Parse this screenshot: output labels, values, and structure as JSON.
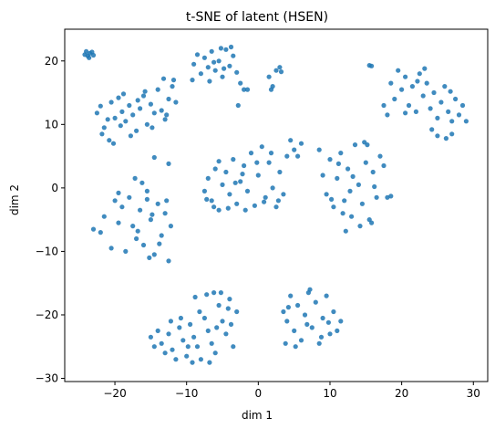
{
  "chart_data": {
    "type": "scatter",
    "title": "t-SNE of latent (HSEN)",
    "xlabel": "dim 1",
    "ylabel": "dim 2",
    "xlim": [
      -27,
      32
    ],
    "ylim": [
      -30.5,
      25
    ],
    "xticks": [
      -20,
      -10,
      0,
      10,
      20,
      30
    ],
    "yticks": [
      -30,
      -20,
      -10,
      0,
      10,
      20
    ],
    "xtick_labels": [
      "−20",
      "−10",
      "0",
      "10",
      "20",
      "30"
    ],
    "ytick_labels": [
      "−30",
      "−20",
      "−10",
      "0",
      "10",
      "20"
    ],
    "grid": false,
    "marker_color": "#1f77b4",
    "points": [
      [
        -24.0,
        21.5
      ],
      [
        -23.5,
        21.2
      ],
      [
        -23.8,
        20.8
      ],
      [
        -23.2,
        21.4
      ],
      [
        -23.0,
        20.9
      ],
      [
        -24.2,
        21.0
      ],
      [
        -23.6,
        20.5
      ],
      [
        -22.5,
        11.8
      ],
      [
        -22.0,
        12.9
      ],
      [
        -21.5,
        9.5
      ],
      [
        -21.0,
        10.8
      ],
      [
        -20.5,
        13.5
      ],
      [
        -20.0,
        11.0
      ],
      [
        -19.5,
        14.2
      ],
      [
        -19.0,
        12.0
      ],
      [
        -18.5,
        10.5
      ],
      [
        -18.0,
        13.0
      ],
      [
        -17.5,
        11.5
      ],
      [
        -17.0,
        9.0
      ],
      [
        -16.5,
        12.5
      ],
      [
        -16.0,
        14.5
      ],
      [
        -15.5,
        10.0
      ],
      [
        -15.0,
        13.2
      ],
      [
        -14.5,
        11.8
      ],
      [
        -14.0,
        15.5
      ],
      [
        -13.5,
        12.2
      ],
      [
        -13.0,
        10.8
      ],
      [
        -12.5,
        14.0
      ],
      [
        -12.0,
        16.0
      ],
      [
        -11.5,
        13.5
      ],
      [
        -20.8,
        7.5
      ],
      [
        -21.8,
        8.5
      ],
      [
        -19.2,
        9.8
      ],
      [
        -17.8,
        8.2
      ],
      [
        -15.8,
        15.2
      ],
      [
        -14.8,
        9.5
      ],
      [
        -13.2,
        17.2
      ],
      [
        -11.8,
        17.0
      ],
      [
        -12.8,
        11.5
      ],
      [
        -16.8,
        13.8
      ],
      [
        -18.8,
        14.8
      ],
      [
        -20.2,
        7.0
      ],
      [
        -9.0,
        19.5
      ],
      [
        -8.5,
        21.0
      ],
      [
        -8.0,
        18.0
      ],
      [
        -7.5,
        20.5
      ],
      [
        -7.0,
        19.0
      ],
      [
        -6.5,
        21.5
      ],
      [
        -6.0,
        18.5
      ],
      [
        -5.5,
        20.0
      ],
      [
        -5.0,
        17.5
      ],
      [
        -4.5,
        21.8
      ],
      [
        -4.0,
        19.2
      ],
      [
        -3.5,
        20.8
      ],
      [
        -3.0,
        18.2
      ],
      [
        -2.5,
        16.5
      ],
      [
        -2.0,
        15.5
      ],
      [
        -9.2,
        17.0
      ],
      [
        -6.8,
        16.8
      ],
      [
        -5.2,
        22.0
      ],
      [
        -3.8,
        22.2
      ],
      [
        -2.8,
        13.0
      ],
      [
        -1.5,
        15.5
      ],
      [
        -6.2,
        19.8
      ],
      [
        -4.8,
        18.8
      ],
      [
        1.5,
        17.5
      ],
      [
        2.0,
        16.0
      ],
      [
        2.5,
        18.5
      ],
      [
        3.0,
        19.0
      ],
      [
        3.2,
        18.3
      ],
      [
        1.8,
        15.5
      ],
      [
        -14.5,
        4.8
      ],
      [
        -12.5,
        3.8
      ],
      [
        -23.0,
        -6.5
      ],
      [
        -22.0,
        -7.0
      ],
      [
        -21.5,
        -4.5
      ],
      [
        -20.5,
        -9.5
      ],
      [
        -20.0,
        -2.0
      ],
      [
        -19.5,
        -5.5
      ],
      [
        -19.0,
        -3.0
      ],
      [
        -18.5,
        -10.0
      ],
      [
        -18.0,
        -1.5
      ],
      [
        -17.5,
        -6.0
      ],
      [
        -17.0,
        -8.0
      ],
      [
        -16.5,
        -3.5
      ],
      [
        -16.0,
        -9.0
      ],
      [
        -15.5,
        -0.5
      ],
      [
        -15.0,
        -5.0
      ],
      [
        -14.5,
        -10.5
      ],
      [
        -14.0,
        -2.5
      ],
      [
        -13.5,
        -7.5
      ],
      [
        -13.0,
        -4.0
      ],
      [
        -12.5,
        -11.5
      ],
      [
        -12.2,
        -6.0
      ],
      [
        -15.5,
        -1.8
      ],
      [
        -17.2,
        1.5
      ],
      [
        -16.2,
        0.8
      ],
      [
        -14.8,
        -4.2
      ],
      [
        -13.8,
        -8.8
      ],
      [
        -19.5,
        -0.8
      ],
      [
        -12.8,
        -2.0
      ],
      [
        -15.2,
        -11.0
      ],
      [
        -16.8,
        -6.8
      ],
      [
        -7.5,
        -0.5
      ],
      [
        -7.0,
        1.5
      ],
      [
        -6.5,
        -2.0
      ],
      [
        -6.0,
        3.0
      ],
      [
        -5.5,
        -3.5
      ],
      [
        -5.0,
        0.5
      ],
      [
        -4.5,
        2.5
      ],
      [
        -4.0,
        -1.0
      ],
      [
        -3.5,
        4.5
      ],
      [
        -3.0,
        -2.5
      ],
      [
        -2.5,
        1.0
      ],
      [
        -2.0,
        3.5
      ],
      [
        -1.5,
        -0.5
      ],
      [
        -1.0,
        5.5
      ],
      [
        -0.5,
        -2.8
      ],
      [
        0.0,
        2.0
      ],
      [
        0.5,
        6.5
      ],
      [
        1.0,
        -1.5
      ],
      [
        1.5,
        4.0
      ],
      [
        2.0,
        0.0
      ],
      [
        2.5,
        -3.0
      ],
      [
        3.0,
        2.5
      ],
      [
        3.5,
        -1.0
      ],
      [
        4.0,
        5.0
      ],
      [
        4.5,
        7.5
      ],
      [
        5.0,
        6.0
      ],
      [
        6.0,
        7.0
      ],
      [
        5.5,
        5.0
      ],
      [
        -7.2,
        -1.8
      ],
      [
        -6.2,
        -3.0
      ],
      [
        -4.2,
        -3.2
      ],
      [
        -1.8,
        -3.5
      ],
      [
        0.8,
        -2.2
      ],
      [
        2.8,
        -2.0
      ],
      [
        -3.2,
        0.8
      ],
      [
        -0.2,
        4.0
      ],
      [
        1.8,
        5.5
      ],
      [
        -5.5,
        4.2
      ],
      [
        -2.2,
        2.2
      ],
      [
        8.5,
        6.0
      ],
      [
        9.0,
        2.0
      ],
      [
        9.5,
        -1.0
      ],
      [
        10.0,
        4.5
      ],
      [
        10.5,
        -3.0
      ],
      [
        11.0,
        1.5
      ],
      [
        11.5,
        5.5
      ],
      [
        12.0,
        -2.0
      ],
      [
        12.5,
        3.0
      ],
      [
        13.0,
        -4.5
      ],
      [
        13.5,
        6.8
      ],
      [
        14.0,
        0.5
      ],
      [
        14.5,
        -2.5
      ],
      [
        15.0,
        4.0
      ],
      [
        15.5,
        -5.0
      ],
      [
        16.0,
        2.5
      ],
      [
        16.5,
        -1.5
      ],
      [
        17.0,
        5.0
      ],
      [
        17.5,
        3.5
      ],
      [
        18.0,
        -1.5
      ],
      [
        18.5,
        -1.3
      ],
      [
        12.2,
        -6.8
      ],
      [
        14.2,
        -6.0
      ],
      [
        15.8,
        -5.5
      ],
      [
        11.8,
        -4.0
      ],
      [
        13.2,
        1.8
      ],
      [
        10.2,
        -1.8
      ],
      [
        12.8,
        -0.5
      ],
      [
        15.2,
        6.8
      ],
      [
        14.8,
        7.2
      ],
      [
        16.2,
        0.2
      ],
      [
        11.2,
        3.8
      ],
      [
        17.5,
        13.0
      ],
      [
        18.0,
        11.5
      ],
      [
        18.5,
        16.5
      ],
      [
        19.0,
        14.0
      ],
      [
        19.5,
        18.5
      ],
      [
        20.0,
        15.5
      ],
      [
        20.5,
        17.5
      ],
      [
        21.0,
        13.0
      ],
      [
        21.5,
        16.0
      ],
      [
        22.0,
        12.0
      ],
      [
        22.5,
        18.0
      ],
      [
        23.0,
        14.5
      ],
      [
        23.5,
        16.5
      ],
      [
        24.0,
        12.5
      ],
      [
        24.5,
        15.0
      ],
      [
        25.0,
        11.0
      ],
      [
        25.5,
        13.5
      ],
      [
        26.0,
        16.0
      ],
      [
        26.5,
        12.0
      ],
      [
        27.0,
        10.5
      ],
      [
        27.5,
        14.0
      ],
      [
        28.0,
        11.5
      ],
      [
        28.5,
        13.0
      ],
      [
        29.0,
        10.5
      ],
      [
        25.0,
        8.2
      ],
      [
        26.2,
        7.8
      ],
      [
        27.0,
        8.5
      ],
      [
        20.5,
        11.8
      ],
      [
        23.2,
        18.8
      ],
      [
        22.2,
        16.8
      ],
      [
        24.2,
        9.2
      ],
      [
        26.8,
        15.2
      ],
      [
        15.5,
        19.3
      ],
      [
        15.8,
        19.2
      ],
      [
        -15.0,
        -23.5
      ],
      [
        -14.5,
        -25.0
      ],
      [
        -14.0,
        -22.5
      ],
      [
        -13.5,
        -24.5
      ],
      [
        -13.0,
        -26.0
      ],
      [
        -12.5,
        -23.0
      ],
      [
        -12.0,
        -25.5
      ],
      [
        -11.5,
        -27.0
      ],
      [
        -11.0,
        -22.0
      ],
      [
        -10.5,
        -24.0
      ],
      [
        -10.0,
        -26.5
      ],
      [
        -9.5,
        -21.5
      ],
      [
        -9.0,
        -23.5
      ],
      [
        -8.5,
        -25.0
      ],
      [
        -8.0,
        -27.0
      ],
      [
        -7.5,
        -20.5
      ],
      [
        -7.0,
        -22.5
      ],
      [
        -6.5,
        -24.5
      ],
      [
        -6.0,
        -26.0
      ],
      [
        -5.5,
        -18.5
      ],
      [
        -5.0,
        -21.0
      ],
      [
        -4.5,
        -23.0
      ],
      [
        -4.0,
        -17.5
      ],
      [
        -3.5,
        -25.0
      ],
      [
        -3.0,
        -19.5
      ],
      [
        -8.8,
        -17.2
      ],
      [
        -7.2,
        -16.8
      ],
      [
        -6.2,
        -16.5
      ],
      [
        -5.2,
        -16.5
      ],
      [
        -4.2,
        -19.0
      ],
      [
        -6.8,
        -27.5
      ],
      [
        -9.8,
        -25.0
      ],
      [
        -12.2,
        -21.0
      ],
      [
        -3.8,
        -21.5
      ],
      [
        -5.8,
        -22.0
      ],
      [
        -8.2,
        -19.5
      ],
      [
        -10.8,
        -20.5
      ],
      [
        -9.2,
        -27.5
      ],
      [
        3.5,
        -19.5
      ],
      [
        4.0,
        -21.0
      ],
      [
        4.5,
        -17.0
      ],
      [
        5.0,
        -22.5
      ],
      [
        5.5,
        -18.5
      ],
      [
        6.0,
        -24.0
      ],
      [
        6.5,
        -20.0
      ],
      [
        7.0,
        -16.5
      ],
      [
        7.5,
        -22.0
      ],
      [
        8.0,
        -18.0
      ],
      [
        8.5,
        -24.5
      ],
      [
        9.0,
        -20.5
      ],
      [
        9.5,
        -17.0
      ],
      [
        10.0,
        -23.0
      ],
      [
        10.5,
        -19.5
      ],
      [
        11.0,
        -22.5
      ],
      [
        11.5,
        -21.0
      ],
      [
        7.2,
        -16.0
      ],
      [
        5.2,
        -25.0
      ],
      [
        3.8,
        -24.5
      ],
      [
        8.8,
        -23.5
      ],
      [
        6.8,
        -21.5
      ],
      [
        9.8,
        -21.2
      ],
      [
        4.2,
        -18.8
      ]
    ]
  }
}
